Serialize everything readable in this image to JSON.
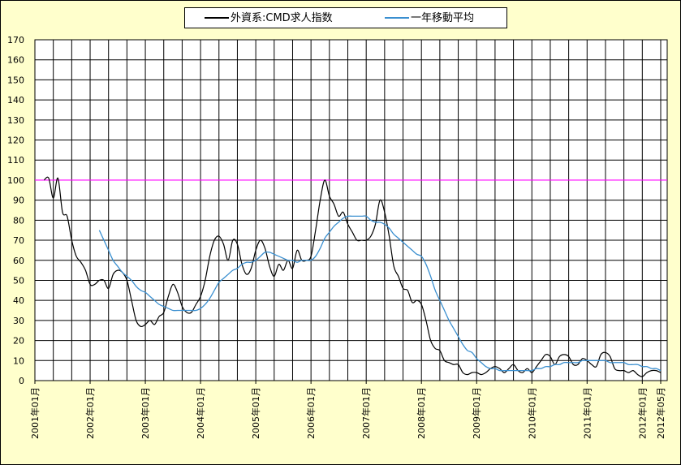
{
  "chart_data": {
    "type": "line",
    "categories": [
      "2001年01月",
      null,
      null,
      null,
      null,
      null,
      null,
      null,
      null,
      null,
      null,
      null,
      "2002年01月",
      null,
      null,
      null,
      null,
      null,
      null,
      null,
      null,
      null,
      null,
      null,
      "2003年01月",
      null,
      null,
      null,
      null,
      null,
      null,
      null,
      null,
      null,
      null,
      null,
      "2004年01月",
      null,
      null,
      null,
      null,
      null,
      null,
      null,
      null,
      null,
      null,
      null,
      "2005年01月",
      null,
      null,
      null,
      null,
      null,
      null,
      null,
      null,
      null,
      null,
      null,
      "2006年01月",
      null,
      null,
      null,
      null,
      null,
      null,
      null,
      null,
      null,
      null,
      null,
      "2007年01月",
      null,
      null,
      null,
      null,
      null,
      null,
      null,
      null,
      null,
      null,
      null,
      "2008年01月",
      null,
      null,
      null,
      null,
      null,
      null,
      null,
      null,
      null,
      null,
      null,
      "2009年01月",
      null,
      null,
      null,
      null,
      null,
      null,
      null,
      null,
      null,
      null,
      null,
      "2010年01月",
      null,
      null,
      null,
      null,
      null,
      null,
      null,
      null,
      null,
      null,
      null,
      "2011年01月",
      null,
      null,
      null,
      null,
      null,
      null,
      null,
      null,
      null,
      null,
      null,
      "2012年01月",
      null,
      null,
      null,
      "2012年05月"
    ],
    "series": [
      {
        "name": "外資系:CMD求人指数",
        "color": "#000000",
        "values": [
          null,
          null,
          100,
          101,
          91,
          101,
          84,
          82,
          70,
          62,
          59,
          55,
          48,
          48,
          50,
          50,
          46,
          53,
          55,
          54,
          50,
          40,
          30,
          27,
          28,
          30,
          28,
          32,
          34,
          42,
          48,
          44,
          37,
          34,
          34,
          38,
          42,
          50,
          62,
          70,
          72,
          68,
          60,
          70,
          68,
          58,
          53,
          56,
          65,
          70,
          66,
          57,
          52,
          58,
          55,
          60,
          56,
          65,
          60,
          60,
          62,
          75,
          90,
          100,
          92,
          88,
          82,
          84,
          78,
          74,
          70,
          70,
          70,
          72,
          78,
          90,
          84,
          72,
          57,
          52,
          46,
          45,
          39,
          40,
          38,
          30,
          20,
          16,
          15,
          10,
          9,
          8,
          8,
          4,
          3,
          4,
          4,
          3,
          4,
          6,
          7,
          6,
          4,
          6,
          8,
          5,
          4,
          6,
          4,
          7,
          10,
          13,
          12,
          8,
          12,
          13,
          12,
          8,
          8,
          11,
          10,
          8,
          7,
          13,
          14,
          12,
          6,
          5,
          5,
          4,
          5,
          3,
          2,
          4,
          5,
          5,
          4
        ]
      },
      {
        "name": "一年移動平均",
        "color": "#3a8fd0",
        "values": [
          null,
          null,
          null,
          null,
          null,
          null,
          null,
          null,
          null,
          null,
          null,
          null,
          null,
          null,
          75,
          70,
          65,
          60,
          57,
          54,
          52,
          50,
          47,
          45,
          44,
          42,
          40,
          38,
          37,
          36,
          35,
          35,
          35,
          35,
          35,
          35,
          36,
          38,
          41,
          45,
          49,
          51,
          53,
          55,
          56,
          58,
          59,
          59,
          60,
          62,
          64,
          64,
          63,
          62,
          61,
          60,
          60,
          59,
          60,
          60,
          60,
          62,
          66,
          71,
          74,
          77,
          79,
          81,
          82,
          82,
          82,
          82,
          82,
          80,
          79,
          79,
          78,
          76,
          73,
          71,
          69,
          67,
          65,
          63,
          62,
          58,
          52,
          45,
          40,
          35,
          30,
          26,
          22,
          18,
          15,
          14,
          11,
          9,
          7,
          6,
          6,
          5,
          5,
          5,
          5,
          5,
          5,
          5,
          5,
          6,
          6,
          7,
          7,
          8,
          8,
          9,
          9,
          9,
          9,
          10,
          10,
          10,
          10,
          10,
          10,
          9,
          9,
          9,
          9,
          8,
          8,
          8,
          7,
          7,
          6,
          6,
          5
        ]
      }
    ],
    "ylim": [
      0,
      170
    ],
    "yticks": [
      0,
      10,
      20,
      30,
      40,
      50,
      60,
      70,
      80,
      90,
      100,
      110,
      120,
      130,
      140,
      150,
      160,
      170
    ],
    "grid": true,
    "reference_line": {
      "value": 100,
      "color": "#ff00ff"
    },
    "legend": "top"
  }
}
